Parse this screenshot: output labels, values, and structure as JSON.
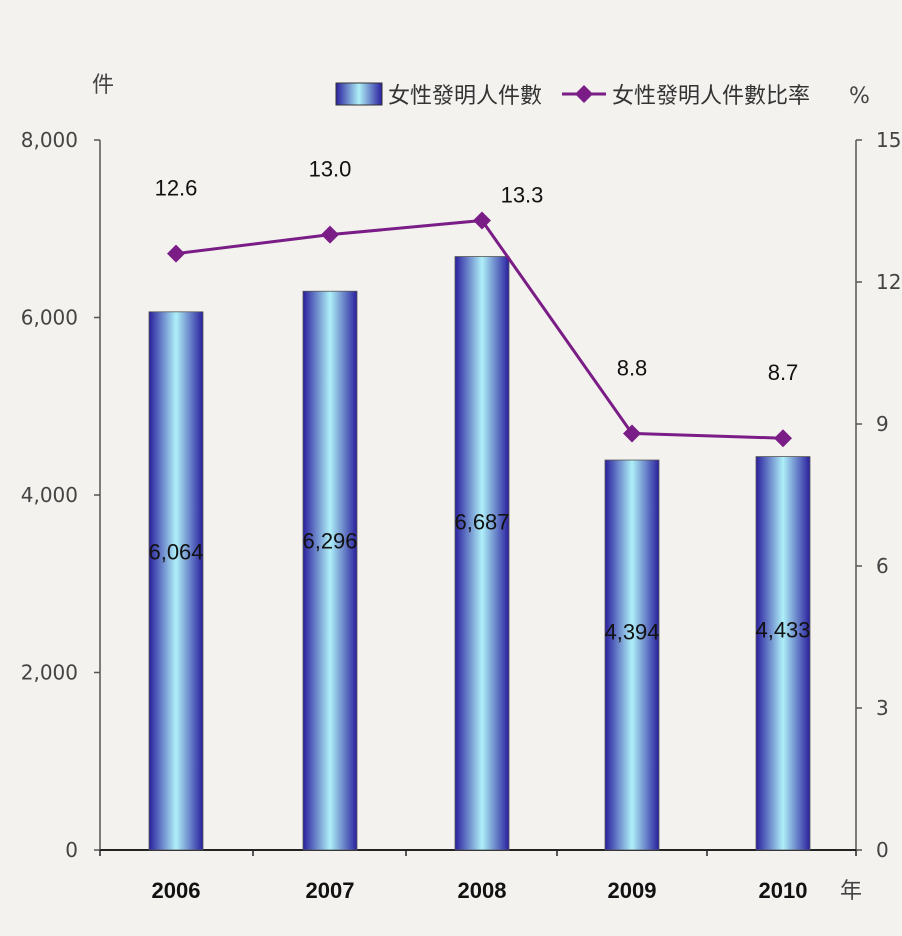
{
  "chart_data": {
    "type": "bar",
    "categories": [
      "2006",
      "2007",
      "2008",
      "2009",
      "2010"
    ],
    "series": [
      {
        "name": "女性發明人件數",
        "type": "bar",
        "axis": "left",
        "values": [
          6064,
          6296,
          6687,
          4394,
          4433
        ],
        "value_labels": [
          "6,064",
          "6,296",
          "6,687",
          "4,394",
          "4,433"
        ]
      },
      {
        "name": "女性發明人件數比率",
        "type": "line",
        "axis": "right",
        "marker": "diamond",
        "values": [
          12.6,
          13.0,
          13.3,
          8.8,
          8.7
        ],
        "value_labels": [
          "12.6",
          "13.0",
          "13.3",
          "8.8",
          "8.7"
        ]
      }
    ],
    "y_left": {
      "unit": "件",
      "ylim": [
        0,
        8000
      ],
      "ticks": [
        0,
        2000,
        4000,
        6000,
        8000
      ],
      "tick_labels": [
        "0",
        "2,000",
        "4,000",
        "6,000",
        "8,000"
      ]
    },
    "y_right": {
      "unit": "%",
      "ylim": [
        0,
        15
      ],
      "ticks": [
        0,
        3,
        6,
        9,
        12,
        15
      ],
      "tick_labels": [
        "0",
        "3",
        "6",
        "9",
        "12",
        "15"
      ]
    },
    "x_unit": "年",
    "legend": "top-right",
    "grid": false,
    "colors": {
      "bar_dark": "#2a1f9e",
      "bar_light": "#aef0f8",
      "line": "#7a1d86",
      "axis": "#555555"
    }
  }
}
